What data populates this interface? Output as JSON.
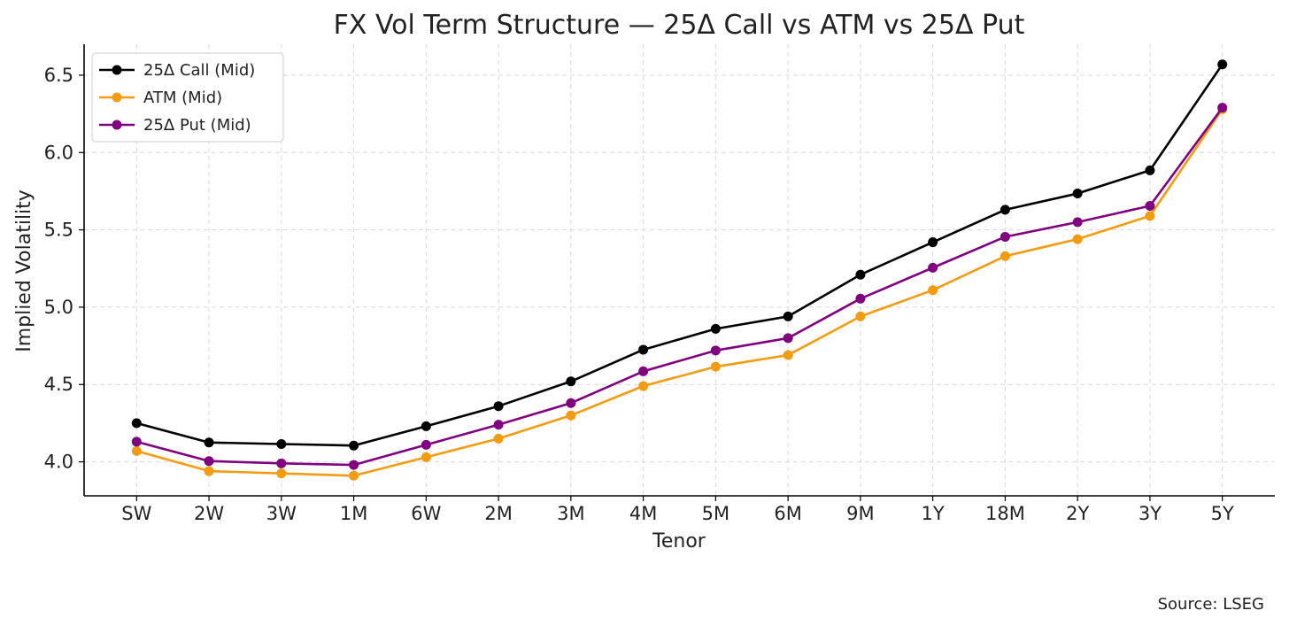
{
  "chart_data": {
    "type": "line",
    "title": "FX Vol Term Structure — 25Δ Call vs ATM vs 25Δ Put",
    "xlabel": "Tenor",
    "ylabel": "Implied Volatility",
    "categories": [
      "SW",
      "2W",
      "3W",
      "1M",
      "6W",
      "2M",
      "3M",
      "4M",
      "5M",
      "6M",
      "9M",
      "1Y",
      "18M",
      "2Y",
      "3Y",
      "5Y"
    ],
    "ylim": [
      3.78,
      6.7
    ],
    "yticks": [
      4.0,
      4.5,
      5.0,
      5.5,
      6.0,
      6.5
    ],
    "ytick_labels": [
      "4.0",
      "4.5",
      "5.0",
      "5.5",
      "6.0",
      "6.5"
    ],
    "grid": true,
    "legend_position": "top-left",
    "series": [
      {
        "name": "25Δ Call (Mid)",
        "color": "#000000",
        "values": [
          4.25,
          4.125,
          4.115,
          4.105,
          4.23,
          4.36,
          4.52,
          4.725,
          4.86,
          4.94,
          5.21,
          5.42,
          5.63,
          5.735,
          5.885,
          6.57
        ]
      },
      {
        "name": "ATM (Mid)",
        "color": "#f39c12",
        "values": [
          4.07,
          3.94,
          3.925,
          3.91,
          4.03,
          4.15,
          4.3,
          4.49,
          4.615,
          4.69,
          4.94,
          5.11,
          5.33,
          5.44,
          5.59,
          6.28
        ]
      },
      {
        "name": "25Δ Put (Mid)",
        "color": "#800080",
        "values": [
          4.13,
          4.005,
          3.99,
          3.98,
          4.11,
          4.24,
          4.38,
          4.585,
          4.72,
          4.8,
          5.055,
          5.255,
          5.455,
          5.55,
          5.655,
          6.29
        ]
      }
    ]
  },
  "source": "Source: LSEG"
}
